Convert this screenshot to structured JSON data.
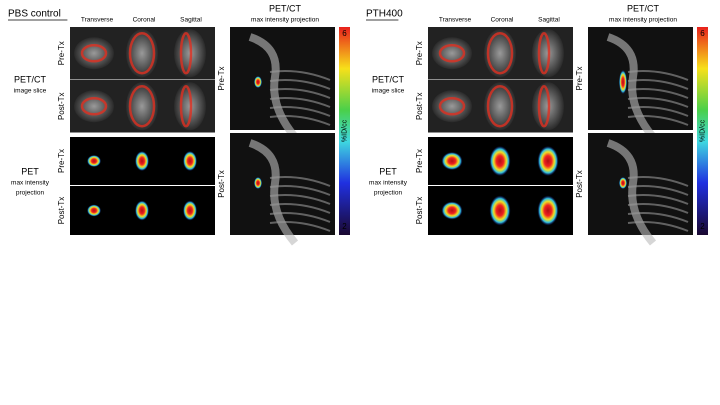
{
  "panels": [
    {
      "title": "PBS control",
      "columns": [
        "Transverse",
        "Coronal",
        "Sagittal"
      ],
      "rows": [
        {
          "label": "PET/CT",
          "sublabel": [
            "image slice"
          ]
        },
        {
          "label": "PET",
          "sublabel": [
            "max intensity",
            "projection"
          ]
        }
      ],
      "row_tags": [
        "Pre-Tx",
        "Post-Tx"
      ],
      "mip": {
        "title": "PET/CT",
        "subtitle": "max intensity projection",
        "row_tags": [
          "Pre-Tx",
          "Post-Tx"
        ]
      },
      "colorbar": {
        "max": "6",
        "label": "%ID/cc",
        "min": "2"
      }
    },
    {
      "title": "PTH400",
      "columns": [
        "Transverse",
        "Coronal",
        "Sagittal"
      ],
      "rows": [
        {
          "label": "PET/CT",
          "sublabel": [
            "image slice"
          ]
        },
        {
          "label": "PET",
          "sublabel": [
            "max intensity",
            "projection"
          ]
        }
      ],
      "row_tags": [
        "Pre-Tx",
        "Post-Tx"
      ],
      "mip": {
        "title": "PET/CT",
        "subtitle": "max intensity projection",
        "row_tags": [
          "Pre-Tx",
          "Post-Tx"
        ]
      },
      "colorbar": {
        "max": "6",
        "label": "%ID/cc",
        "min": "2"
      }
    }
  ]
}
